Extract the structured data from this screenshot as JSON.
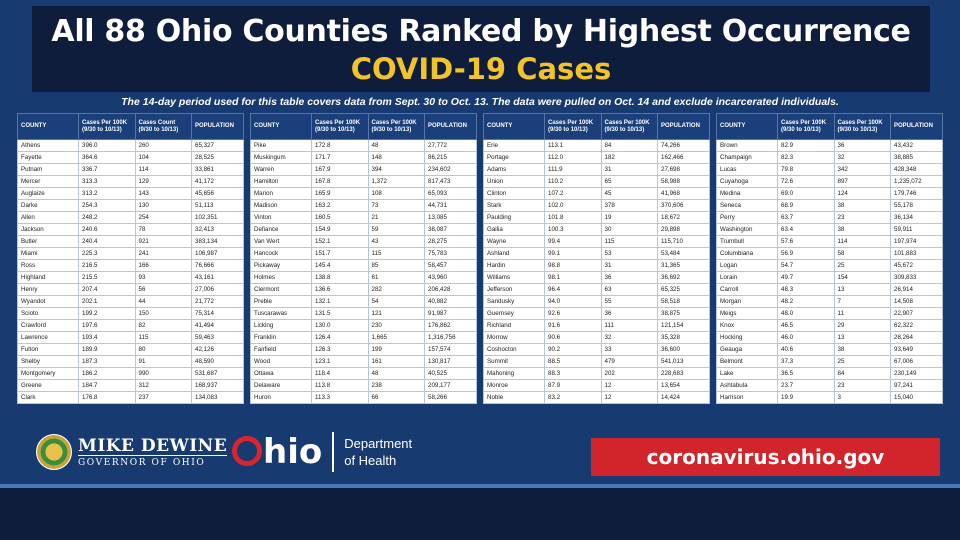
{
  "header": {
    "title": "All 88 Ohio Counties Ranked by Highest Occurrence",
    "subtitle": "COVID-19 Cases"
  },
  "note": "The 14-day period used for this table covers data from Sept. 30 to Oct. 13. The data were pulled on Oct. 14 and exclude incarcerated individuals.",
  "columns": [
    "COUNTY",
    "Cases Per 100K (9/30 to 10/13)",
    "Cases Count (9/30 to 10/13)",
    "POPULATION"
  ],
  "tables": [
    {
      "columns": [
        "COUNTY",
        "Cases Per 100K (9/30 to 10/13)",
        "Cases Count (9/30 to 10/13)",
        "POPULATION"
      ],
      "rows": [
        [
          "Athens",
          "396.0",
          "260",
          "65,327"
        ],
        [
          "Fayette",
          "364.6",
          "104",
          "28,525"
        ],
        [
          "Putnam",
          "336.7",
          "114",
          "33,861"
        ],
        [
          "Mercer",
          "313.3",
          "129",
          "41,172"
        ],
        [
          "Auglaize",
          "313.2",
          "143",
          "45,656"
        ],
        [
          "Darke",
          "254.3",
          "130",
          "51,113"
        ],
        [
          "Allen",
          "248.2",
          "254",
          "102,351"
        ],
        [
          "Jackson",
          "240.6",
          "78",
          "32,413"
        ],
        [
          "Butler",
          "240.4",
          "921",
          "383,134"
        ],
        [
          "Miami",
          "225.3",
          "241",
          "106,987"
        ],
        [
          "Ross",
          "216.5",
          "166",
          "76,666"
        ],
        [
          "Highland",
          "215.5",
          "93",
          "43,161"
        ],
        [
          "Henry",
          "207.4",
          "56",
          "27,006"
        ],
        [
          "Wyandot",
          "202.1",
          "44",
          "21,772"
        ],
        [
          "Scioto",
          "199.2",
          "150",
          "75,314"
        ],
        [
          "Crawford",
          "197.6",
          "82",
          "41,494"
        ],
        [
          "Lawrence",
          "193.4",
          "115",
          "59,463"
        ],
        [
          "Fulton",
          "189.9",
          "80",
          "42,126"
        ],
        [
          "Shelby",
          "187.3",
          "91",
          "48,590"
        ],
        [
          "Montgomery",
          "186.2",
          "990",
          "531,687"
        ],
        [
          "Greene",
          "184.7",
          "312",
          "168,937"
        ],
        [
          "Clark",
          "176.8",
          "237",
          "134,083"
        ]
      ]
    },
    {
      "columns": [
        "COUNTY",
        "Cases Per 100K (9/30 to 10/13)",
        "Cases Per 100K (9/30 to 10/13)",
        "POPULATION"
      ],
      "rows": [
        [
          "Pike",
          "172.8",
          "48",
          "27,772"
        ],
        [
          "Muskingum",
          "171.7",
          "148",
          "86,215"
        ],
        [
          "Warren",
          "167.9",
          "394",
          "234,602"
        ],
        [
          "Hamilton",
          "167.8",
          "1,372",
          "817,473"
        ],
        [
          "Marion",
          "165.9",
          "108",
          "65,093"
        ],
        [
          "Madison",
          "163.2",
          "73",
          "44,731"
        ],
        [
          "Vinton",
          "160.5",
          "21",
          "13,085"
        ],
        [
          "Defiance",
          "154.9",
          "59",
          "38,087"
        ],
        [
          "Van Wert",
          "152.1",
          "43",
          "28,275"
        ],
        [
          "Hancock",
          "151.7",
          "115",
          "75,783"
        ],
        [
          "Pickaway",
          "145.4",
          "85",
          "58,457"
        ],
        [
          "Holmes",
          "138.8",
          "61",
          "43,960"
        ],
        [
          "Clermont",
          "136.6",
          "282",
          "206,428"
        ],
        [
          "Preble",
          "132.1",
          "54",
          "40,882"
        ],
        [
          "Tuscarawas",
          "131.5",
          "121",
          "91,987"
        ],
        [
          "Licking",
          "130.0",
          "230",
          "176,862"
        ],
        [
          "Franklin",
          "126.4",
          "1,665",
          "1,316,756"
        ],
        [
          "Fairfield",
          "126.3",
          "199",
          "157,574"
        ],
        [
          "Wood",
          "123.1",
          "161",
          "130,817"
        ],
        [
          "Ottawa",
          "118.4",
          "48",
          "40,525"
        ],
        [
          "Delaware",
          "113.8",
          "238",
          "209,177"
        ],
        [
          "Huron",
          "113.3",
          "66",
          "58,266"
        ]
      ]
    },
    {
      "columns": [
        "COUNTY",
        "Cases Per 100K (9/30 to 10/13)",
        "Cases Per 100K (9/30 to 10/13)",
        "POPULATION"
      ],
      "rows": [
        [
          "Erie",
          "113.1",
          "84",
          "74,266"
        ],
        [
          "Portage",
          "112.0",
          "182",
          "162,466"
        ],
        [
          "Adams",
          "111.9",
          "31",
          "27,698"
        ],
        [
          "Union",
          "110.2",
          "65",
          "58,988"
        ],
        [
          "Clinton",
          "107.2",
          "45",
          "41,968"
        ],
        [
          "Stark",
          "102.0",
          "378",
          "370,606"
        ],
        [
          "Paulding",
          "101.8",
          "19",
          "18,672"
        ],
        [
          "Gallia",
          "100.3",
          "30",
          "29,898"
        ],
        [
          "Wayne",
          "99.4",
          "115",
          "115,710"
        ],
        [
          "Ashland",
          "99.1",
          "53",
          "53,484"
        ],
        [
          "Hardin",
          "98.8",
          "31",
          "31,365"
        ],
        [
          "Williams",
          "98.1",
          "36",
          "36,692"
        ],
        [
          "Jefferson",
          "96.4",
          "63",
          "65,325"
        ],
        [
          "Sandusky",
          "94.0",
          "55",
          "58,518"
        ],
        [
          "Guernsey",
          "92.6",
          "36",
          "38,875"
        ],
        [
          "Richland",
          "91.6",
          "111",
          "121,154"
        ],
        [
          "Morrow",
          "90.6",
          "32",
          "35,328"
        ],
        [
          "Coshocton",
          "90.2",
          "33",
          "36,600"
        ],
        [
          "Summit",
          "88.5",
          "479",
          "541,013"
        ],
        [
          "Mahoning",
          "88.3",
          "202",
          "228,683"
        ],
        [
          "Monroe",
          "87.9",
          "12",
          "13,654"
        ],
        [
          "Noble",
          "83.2",
          "12",
          "14,424"
        ]
      ]
    },
    {
      "columns": [
        "COUNTY",
        "Cases Per 100K (9/30 to 10/13)",
        "Cases Per 100K (9/30 to 10/13)",
        "POPULATION"
      ],
      "rows": [
        [
          "Brown",
          "82.9",
          "36",
          "43,432"
        ],
        [
          "Champaign",
          "82.3",
          "32",
          "38,885"
        ],
        [
          "Lucas",
          "79.8",
          "342",
          "428,348"
        ],
        [
          "Cuyahoga",
          "72.6",
          "897",
          "1,235,072"
        ],
        [
          "Medina",
          "69.0",
          "124",
          "179,746"
        ],
        [
          "Seneca",
          "68.9",
          "38",
          "55,178"
        ],
        [
          "Perry",
          "63.7",
          "23",
          "36,134"
        ],
        [
          "Washington",
          "63.4",
          "38",
          "59,911"
        ],
        [
          "Trumbull",
          "57.6",
          "114",
          "197,974"
        ],
        [
          "Columbiana",
          "56.9",
          "58",
          "101,883"
        ],
        [
          "Logan",
          "54.7",
          "25",
          "45,672"
        ],
        [
          "Lorain",
          "49.7",
          "154",
          "309,833"
        ],
        [
          "Carroll",
          "48.3",
          "13",
          "26,914"
        ],
        [
          "Morgan",
          "48.2",
          "7",
          "14,508"
        ],
        [
          "Meigs",
          "48.0",
          "11",
          "22,907"
        ],
        [
          "Knox",
          "46.5",
          "29",
          "62,322"
        ],
        [
          "Hocking",
          "46.0",
          "13",
          "28,264"
        ],
        [
          "Geauga",
          "40.6",
          "38",
          "93,649"
        ],
        [
          "Belmont",
          "37.3",
          "25",
          "67,006"
        ],
        [
          "Lake",
          "36.5",
          "84",
          "230,149"
        ],
        [
          "Ashtabula",
          "23.7",
          "23",
          "97,241"
        ],
        [
          "Harrison",
          "19.9",
          "3",
          "15,040"
        ]
      ]
    }
  ],
  "footer": {
    "governor_name": "MIKE DEWINE",
    "governor_title": "GOVERNOR OF OHIO",
    "ohio_rest": "hio",
    "dept_line1": "Department",
    "dept_line2": "of Health",
    "url": "coronavirus.ohio.gov"
  },
  "icons": {
    "seal": "ohio-state-seal-icon",
    "ohio_logo": "ohio-logo-icon"
  },
  "colors": {
    "background": "#173a70",
    "title_box": "#0f1d3c",
    "subtitle": "#f3c42a",
    "url_box": "#d2242b"
  }
}
